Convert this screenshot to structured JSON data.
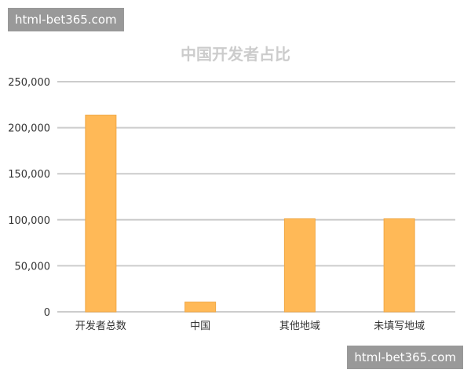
{
  "watermarks": [
    "html-bet365.com",
    "html-bet365.com"
  ],
  "chart_data": {
    "type": "bar",
    "title": "中国开发者占比",
    "categories": [
      "开发者总数",
      "中国",
      "其他地域",
      "未填写地域"
    ],
    "values": [
      213700,
      10600,
      101000,
      101000
    ],
    "ylim": [
      0,
      250000
    ],
    "yticks": [
      0,
      50000,
      100000,
      150000,
      200000,
      250000
    ],
    "ytick_labels": [
      "0",
      "50,000",
      "100,000",
      "150,000",
      "200,000",
      "250,000"
    ],
    "grid": true,
    "legend": "none",
    "colors": {
      "bar": "#ffb957",
      "bar_border": "#f0a845",
      "grid": "#cccccc",
      "title": "#cccccc",
      "text": "#333333"
    }
  }
}
